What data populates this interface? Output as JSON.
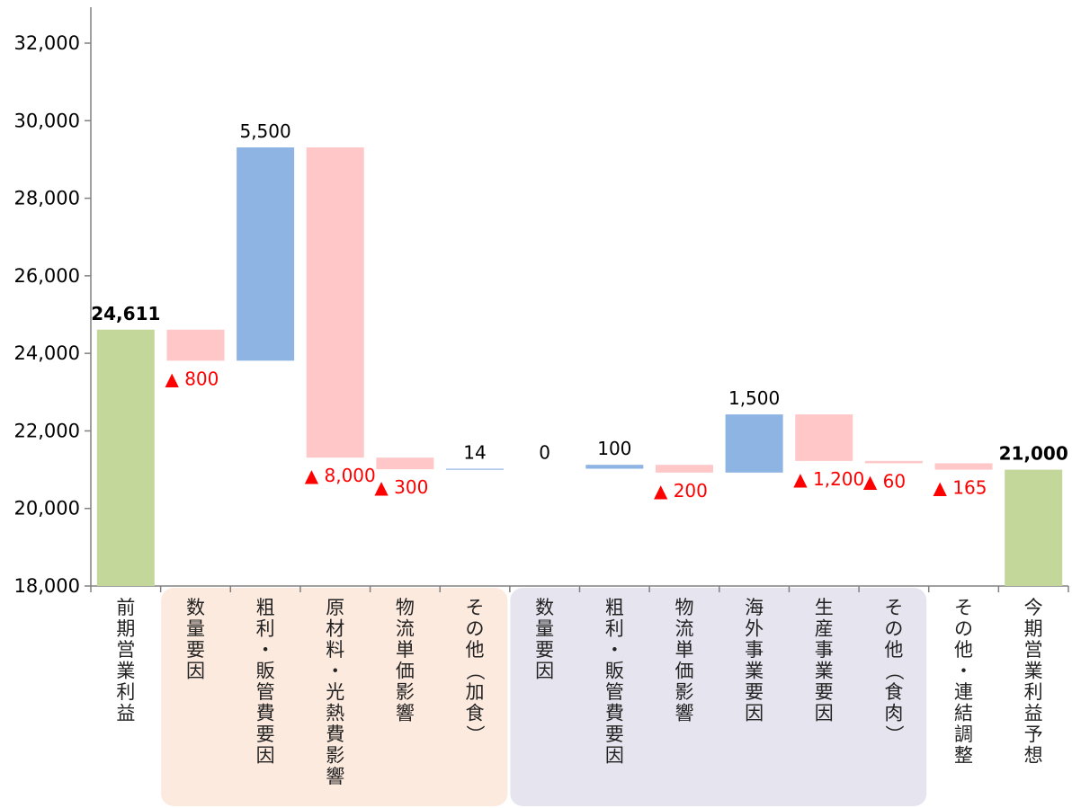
{
  "chart_data": {
    "type": "bar",
    "subtype": "waterfall",
    "title": "",
    "xlabel": "",
    "ylabel": "",
    "ylim": [
      18000,
      32000
    ],
    "yticks": [
      18000,
      20000,
      22000,
      24000,
      26000,
      28000,
      30000,
      32000
    ],
    "ytick_labels": [
      "18,000",
      "20,000",
      "22,000",
      "24,000",
      "26,000",
      "28,000",
      "30,000",
      "32,000"
    ],
    "grid": false,
    "legend": "none",
    "colors": {
      "total": "#c4d79b",
      "increase": "#8eb4e3",
      "decrease": "#ffc7c7",
      "negative_label": "#ff0000",
      "group_processed": "#fdeadf",
      "group_meat": "#e6e4ef"
    },
    "categories": [
      "前期営業利益",
      "数量要因",
      "粗利・販管費要因",
      "原材料・光熱費影響",
      "物流単価影響",
      "その他（加食）",
      "数量要因",
      "粗利・販管費要因",
      "物流単価影響",
      "海外事業要因",
      "生産事業要因",
      "その他（食肉）",
      "その他・連結調整",
      "今期営業利益予想"
    ],
    "bars": [
      {
        "kind": "total",
        "start": 18000,
        "end": 24611,
        "label": "24,611"
      },
      {
        "kind": "decrease",
        "start": 24611,
        "end": 23811,
        "label": "▲ 800"
      },
      {
        "kind": "increase",
        "start": 23811,
        "end": 29311,
        "label": "5,500"
      },
      {
        "kind": "decrease",
        "start": 29311,
        "end": 21311,
        "label": "▲ 8,000"
      },
      {
        "kind": "decrease",
        "start": 21311,
        "end": 21011,
        "label": "▲ 300"
      },
      {
        "kind": "increase",
        "start": 21011,
        "end": 21025,
        "label": "14"
      },
      {
        "kind": "increase",
        "start": 21025,
        "end": 21025,
        "label": "0"
      },
      {
        "kind": "increase",
        "start": 21025,
        "end": 21125,
        "label": "100"
      },
      {
        "kind": "decrease",
        "start": 21125,
        "end": 20925,
        "label": "▲ 200"
      },
      {
        "kind": "increase",
        "start": 20925,
        "end": 22425,
        "label": "1,500"
      },
      {
        "kind": "decrease",
        "start": 22425,
        "end": 21225,
        "label": "▲ 1,200"
      },
      {
        "kind": "decrease",
        "start": 21225,
        "end": 21165,
        "label": "▲ 60"
      },
      {
        "kind": "decrease",
        "start": 21165,
        "end": 21000,
        "label": "▲ 165"
      },
      {
        "kind": "total",
        "start": 18000,
        "end": 21000,
        "label": "21,000"
      }
    ],
    "groups": [
      {
        "from": 1,
        "to": 5,
        "color": "group_processed"
      },
      {
        "from": 6,
        "to": 11,
        "color": "group_meat"
      }
    ]
  }
}
